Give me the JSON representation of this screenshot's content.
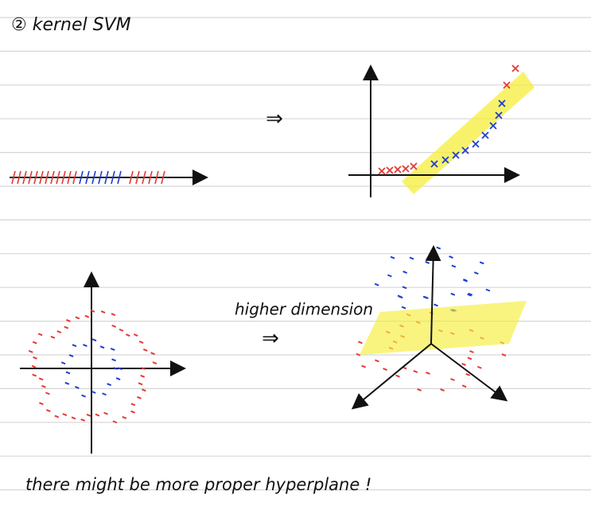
{
  "header": {
    "title": "② kernel SVM"
  },
  "top_arrow": "⇒",
  "middle": {
    "label": "higher dimension",
    "arrow": "⇒"
  },
  "footer": {
    "note": "there might be more proper hyperplane !"
  }
}
